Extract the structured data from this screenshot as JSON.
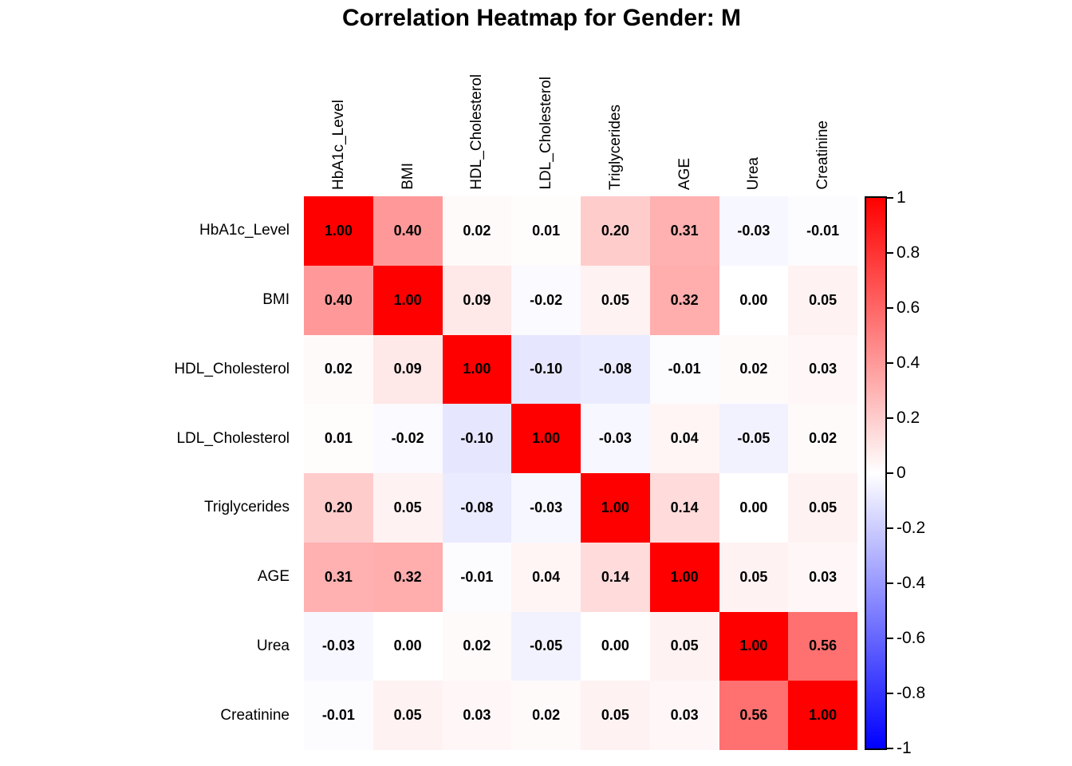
{
  "chart_data": {
    "type": "heatmap",
    "title": "Correlation Heatmap for Gender: M",
    "variables": [
      "HbA1c_Level",
      "BMI",
      "HDL_Cholesterol",
      "LDL_Cholesterol",
      "Triglycerides",
      "AGE",
      "Urea",
      "Creatinine"
    ],
    "matrix": [
      [
        1.0,
        0.4,
        0.02,
        0.01,
        0.2,
        0.31,
        -0.03,
        -0.01
      ],
      [
        0.4,
        1.0,
        0.09,
        -0.02,
        0.05,
        0.32,
        0.0,
        0.05
      ],
      [
        0.02,
        0.09,
        1.0,
        -0.1,
        -0.08,
        -0.01,
        0.02,
        0.03
      ],
      [
        0.01,
        -0.02,
        -0.1,
        1.0,
        -0.03,
        0.04,
        -0.05,
        0.02
      ],
      [
        0.2,
        0.05,
        -0.08,
        -0.03,
        1.0,
        0.14,
        0.0,
        0.05
      ],
      [
        0.31,
        0.32,
        -0.01,
        0.04,
        0.14,
        1.0,
        0.05,
        0.03
      ],
      [
        -0.03,
        0.0,
        0.02,
        -0.05,
        0.0,
        0.05,
        1.0,
        0.56
      ],
      [
        -0.01,
        0.05,
        0.03,
        0.02,
        0.05,
        0.03,
        0.56,
        1.0
      ]
    ],
    "value_decimals": 2,
    "vmin": -1,
    "vmax": 1,
    "colormap": {
      "name": "blue-white-red",
      "negative_end": "#0000ff",
      "midpoint": "#ffffff",
      "positive_end": "#ff0000"
    },
    "colorbar": {
      "position": "right",
      "tick_labels": [
        "1",
        "0.8",
        "0.6",
        "0.4",
        "0.2",
        "0",
        "-0.2",
        "-0.4",
        "-0.6",
        "-0.8",
        "-1"
      ],
      "tick_values": [
        1,
        0.8,
        0.6,
        0.4,
        0.2,
        0,
        -0.2,
        -0.4,
        -0.6,
        -0.8,
        -1
      ]
    },
    "grid_lines": "off",
    "legend_position": "right-colorbar"
  }
}
